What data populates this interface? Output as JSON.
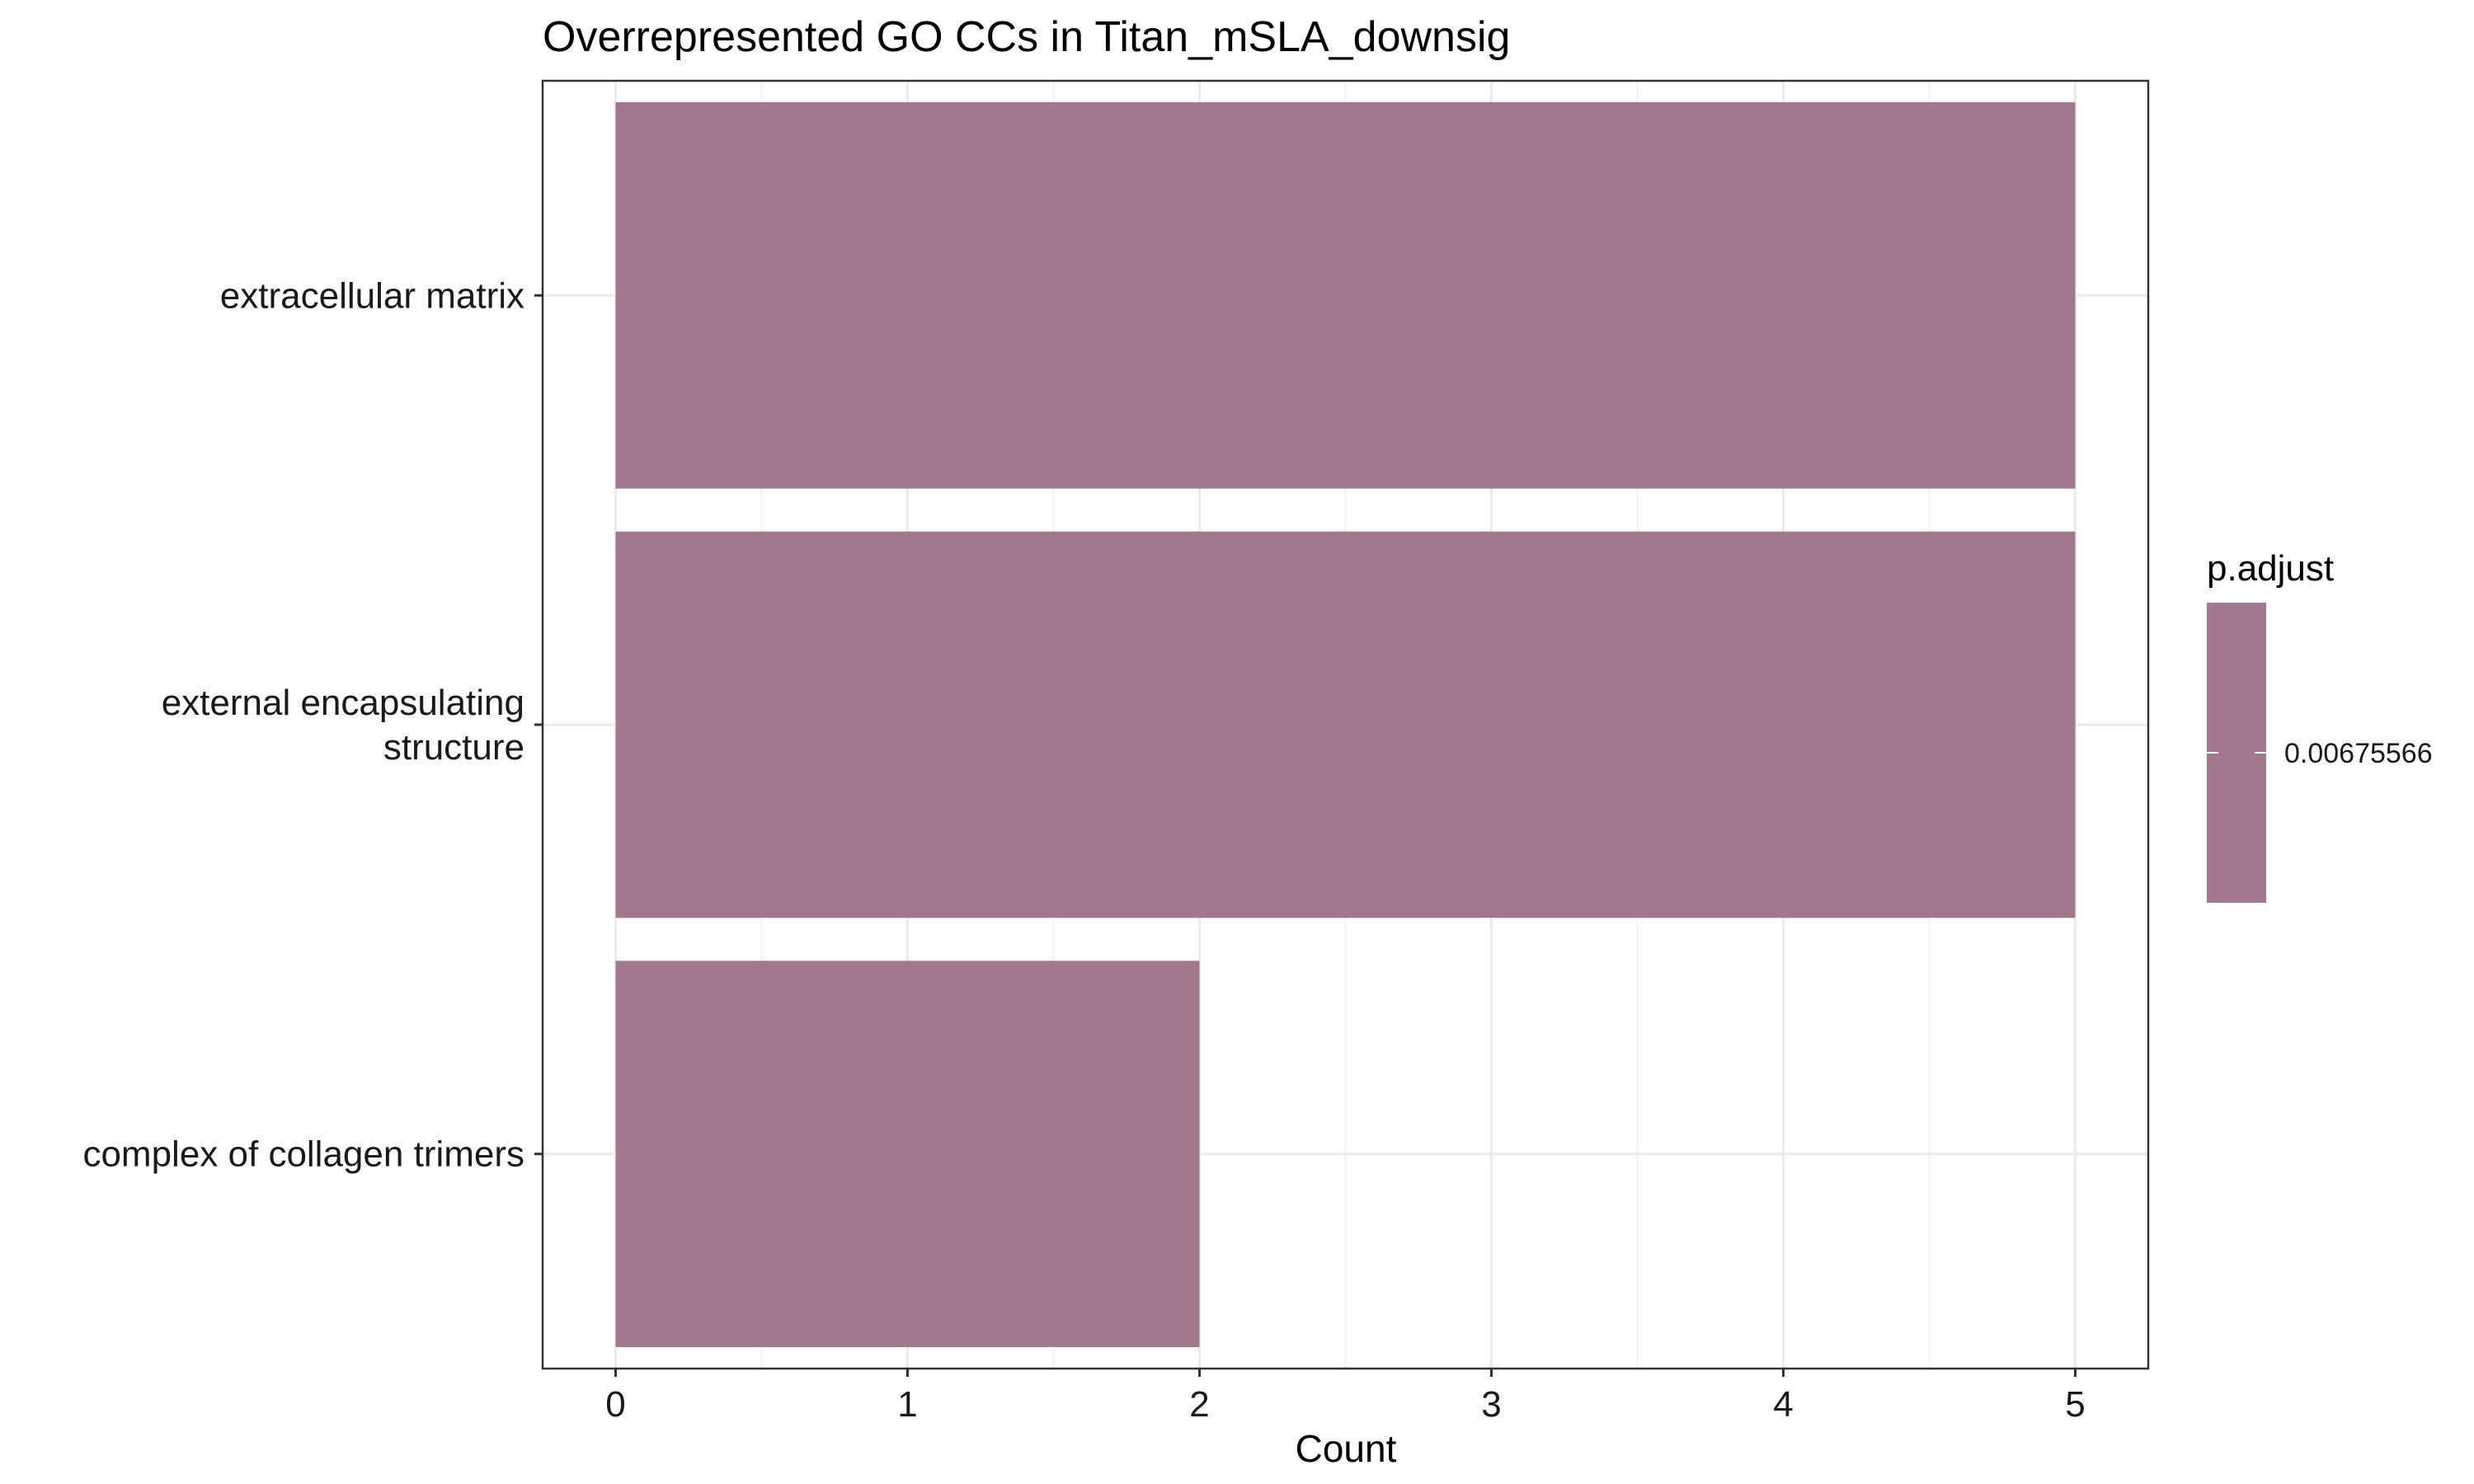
{
  "chart_data": {
    "type": "bar",
    "orientation": "horizontal",
    "title": "Overrepresented GO CCs in Titan_mSLA_downsig",
    "xlabel": "Count",
    "ylabel": "",
    "categories": [
      [
        "extracellular matrix"
      ],
      [
        "external encapsulating",
        "structure"
      ],
      [
        "complex of collagen trimers"
      ]
    ],
    "values": [
      5,
      5,
      2
    ],
    "xlim": [
      -0.25,
      5.25
    ],
    "xticks": [
      0,
      1,
      2,
      3,
      4,
      5
    ],
    "grid": true,
    "bar_color": "#a3778d",
    "legend": {
      "title": "p.adjust",
      "labels": [
        "0.00675566"
      ],
      "placement": "right"
    }
  }
}
